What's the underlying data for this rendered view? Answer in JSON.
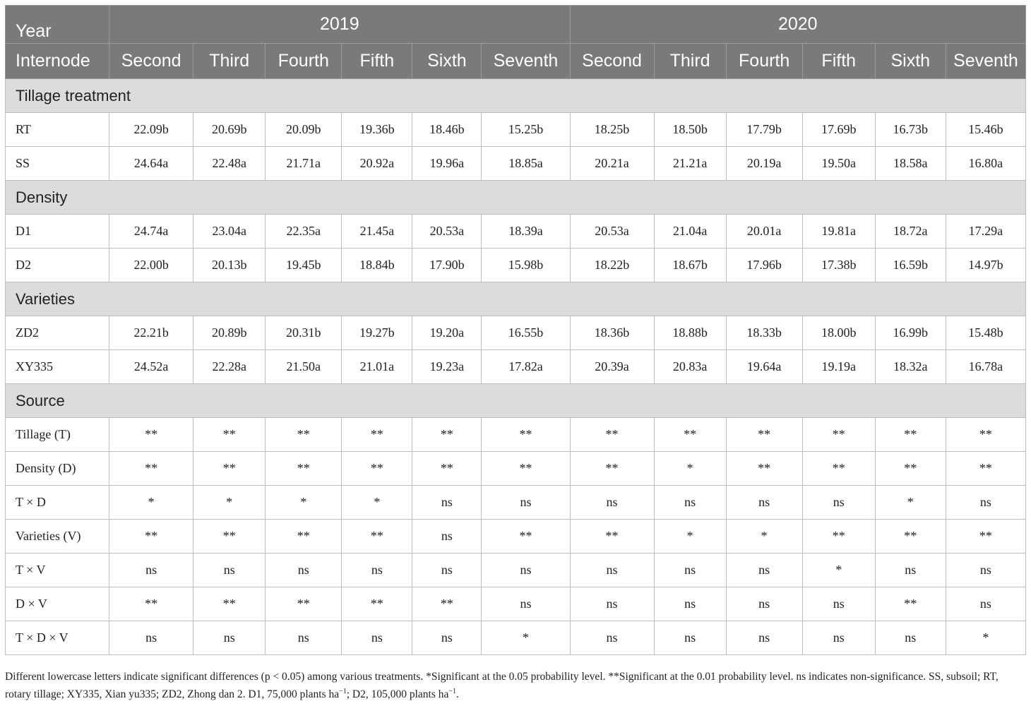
{
  "header": {
    "year_label": "Year",
    "years": [
      "2019",
      "2020"
    ],
    "internode_label": "Internode",
    "internodes": [
      "Second",
      "Third",
      "Fourth",
      "Fifth",
      "Sixth",
      "Seventh",
      "Second",
      "Third",
      "Fourth",
      "Fifth",
      "Sixth",
      "Seventh"
    ]
  },
  "sections": [
    {
      "title": "Tillage treatment",
      "rows": [
        {
          "label": "RT",
          "values": [
            "22.09b",
            "20.69b",
            "20.09b",
            "19.36b",
            "18.46b",
            "15.25b",
            "18.25b",
            "18.50b",
            "17.79b",
            "17.69b",
            "16.73b",
            "15.46b"
          ]
        },
        {
          "label": "SS",
          "values": [
            "24.64a",
            "22.48a",
            "21.71a",
            "20.92a",
            "19.96a",
            "18.85a",
            "20.21a",
            "21.21a",
            "20.19a",
            "19.50a",
            "18.58a",
            "16.80a"
          ]
        }
      ]
    },
    {
      "title": "Density",
      "rows": [
        {
          "label": "D1",
          "values": [
            "24.74a",
            "23.04a",
            "22.35a",
            "21.45a",
            "20.53a",
            "18.39a",
            "20.53a",
            "21.04a",
            "20.01a",
            "19.81a",
            "18.72a",
            "17.29a"
          ]
        },
        {
          "label": "D2",
          "values": [
            "22.00b",
            "20.13b",
            "19.45b",
            "18.84b",
            "17.90b",
            "15.98b",
            "18.22b",
            "18.67b",
            "17.96b",
            "17.38b",
            "16.59b",
            "14.97b"
          ]
        }
      ]
    },
    {
      "title": "Varieties",
      "rows": [
        {
          "label": "ZD2",
          "values": [
            "22.21b",
            "20.89b",
            "20.31b",
            "19.27b",
            "19.20a",
            "16.55b",
            "18.36b",
            "18.88b",
            "18.33b",
            "18.00b",
            "16.99b",
            "15.48b"
          ]
        },
        {
          "label": "XY335",
          "values": [
            "24.52a",
            "22.28a",
            "21.50a",
            "21.01a",
            "19.23a",
            "17.82a",
            "20.39a",
            "20.83a",
            "19.64a",
            "19.19a",
            "18.32a",
            "16.78a"
          ]
        }
      ]
    },
    {
      "title": "Source",
      "rows": [
        {
          "label": "Tillage (T)",
          "values": [
            "**",
            "**",
            "**",
            "**",
            "**",
            "**",
            "**",
            "**",
            "**",
            "**",
            "**",
            "**"
          ]
        },
        {
          "label": "Density (D)",
          "values": [
            "**",
            "**",
            "**",
            "**",
            "**",
            "**",
            "**",
            "*",
            "**",
            "**",
            "**",
            "**"
          ]
        },
        {
          "label": "T × D",
          "values": [
            "*",
            "*",
            "*",
            "*",
            "ns",
            "ns",
            "ns",
            "ns",
            "ns",
            "ns",
            "*",
            "ns"
          ]
        },
        {
          "label": "Varieties (V)",
          "values": [
            "**",
            "**",
            "**",
            "**",
            "ns",
            "**",
            "**",
            "*",
            "*",
            "**",
            "**",
            "**"
          ]
        },
        {
          "label": "T × V",
          "values": [
            "ns",
            "ns",
            "ns",
            "ns",
            "ns",
            "ns",
            "ns",
            "ns",
            "ns",
            "*",
            "ns",
            "ns"
          ]
        },
        {
          "label": "D × V",
          "values": [
            "**",
            "**",
            "**",
            "**",
            "**",
            "ns",
            "ns",
            "ns",
            "ns",
            "ns",
            "**",
            "ns"
          ]
        },
        {
          "label": "T × D × V",
          "values": [
            "ns",
            "ns",
            "ns",
            "ns",
            "ns",
            "*",
            "ns",
            "ns",
            "ns",
            "ns",
            "ns",
            "*"
          ]
        }
      ]
    }
  ],
  "footnote": {
    "main": "Different lowercase letters indicate significant differences (p < 0.05) among various treatments. *Significant at the 0.05 probability level. **Significant at the 0.01 probability level. ns indicates non-significance. SS, subsoil; RT, rotary tillage; XY335, Xian yu335; ZD2, Zhong dan 2. D1, 75,000 plants ha",
    "sup1": "−1",
    "mid": "; D2, 105,000 plants ha",
    "sup2": "−1",
    "end": "."
  }
}
